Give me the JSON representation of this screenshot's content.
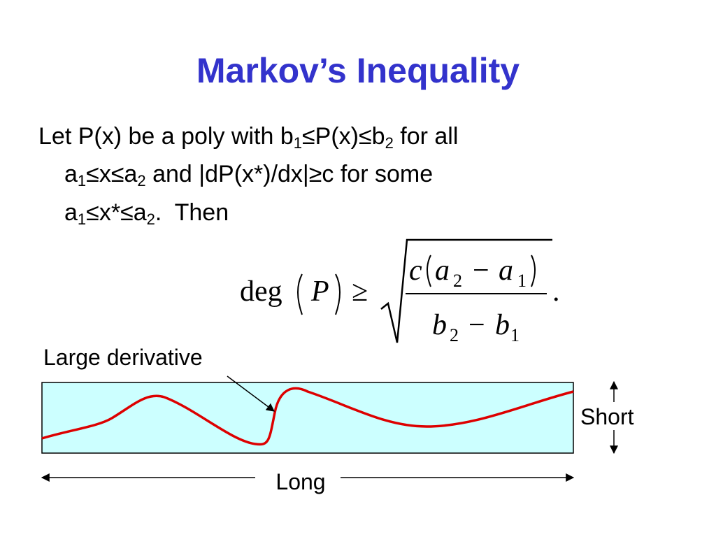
{
  "title": "Markov’s Inequality",
  "body": {
    "lines": [
      [
        {
          "text": "Let P(x) be a poly with b"
        },
        {
          "sub": "1"
        },
        {
          "text": "≤P(x)≤b"
        },
        {
          "sub": "2"
        },
        {
          "text": " for all"
        }
      ],
      [
        {
          "text": "a"
        },
        {
          "sub": "1"
        },
        {
          "text": "≤x≤a"
        },
        {
          "sub": "2"
        },
        {
          "text": " and |dP(x*)/dx|≥c for some"
        }
      ],
      [
        {
          "text": "a"
        },
        {
          "sub": "1"
        },
        {
          "text": "≤x*≤a"
        },
        {
          "sub": "2"
        },
        {
          "text": ".  Then"
        }
      ]
    ]
  },
  "formula": {
    "func": "deg",
    "arg": "P",
    "relation": "≥",
    "numerator": {
      "coef": "c",
      "minus": "−",
      "terms": [
        {
          "base": "a",
          "sub": "2"
        },
        {
          "base": "a",
          "sub": "1"
        }
      ]
    },
    "denominator": {
      "minus": "−",
      "terms": [
        {
          "base": "b",
          "sub": "2"
        },
        {
          "base": "b",
          "sub": "1"
        }
      ]
    },
    "end": "."
  },
  "diagram": {
    "callout": "Large derivative",
    "height_label": "Short",
    "width_label": "Long"
  }
}
